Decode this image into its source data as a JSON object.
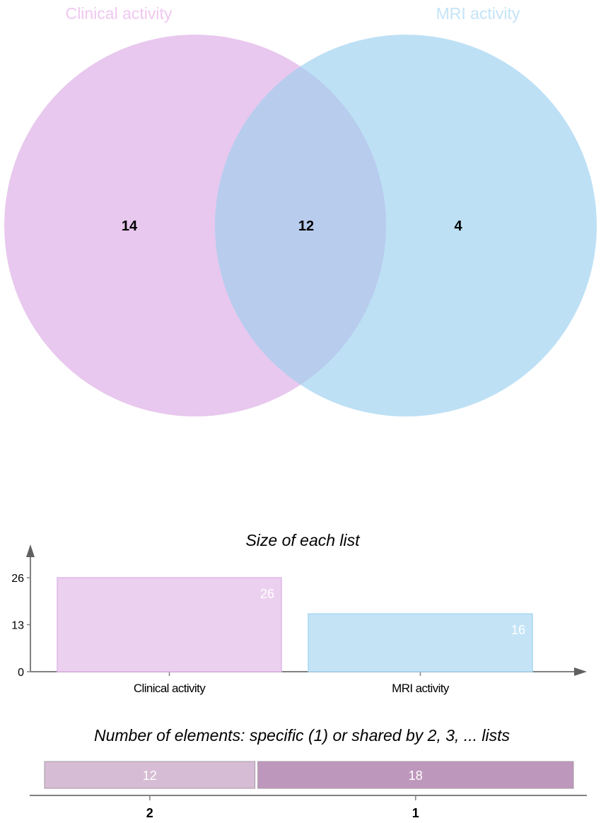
{
  "chart_data": [
    {
      "type": "venn",
      "sets": [
        {
          "name": "Clinical activity",
          "color": "#e8c8ee",
          "label_color": "#f0c8f0"
        },
        {
          "name": "MRI activity",
          "color": "#bde0f5",
          "label_color": "#c4e4f7"
        }
      ],
      "intersection_color": "#b8ccee",
      "regions": [
        {
          "sets": [
            "Clinical activity"
          ],
          "value": 14
        },
        {
          "sets": [
            "Clinical activity",
            "MRI activity"
          ],
          "value": 12
        },
        {
          "sets": [
            "MRI activity"
          ],
          "value": 4
        }
      ]
    },
    {
      "type": "bar",
      "title": "Size of each list",
      "categories": [
        "Clinical activity",
        "MRI activity"
      ],
      "values": [
        26,
        16
      ],
      "data_labels": [
        "26",
        "16"
      ],
      "colors": [
        "#ecd0f0",
        "#c4e4f6"
      ],
      "border_colors": [
        "#e0b8e8",
        "#a8d6f2"
      ],
      "yticks": [
        "0",
        "13",
        "26"
      ],
      "ylim": [
        0,
        26
      ]
    },
    {
      "type": "bar",
      "orientation": "horizontal-stacked",
      "title": "Number of elements: specific (1) or shared by 2, 3, ... lists",
      "categories": [
        "2",
        "1"
      ],
      "values": [
        12,
        18
      ],
      "data_labels": [
        "12",
        "18"
      ],
      "colors": [
        "#d6bcd4",
        "#be98bc"
      ]
    }
  ]
}
